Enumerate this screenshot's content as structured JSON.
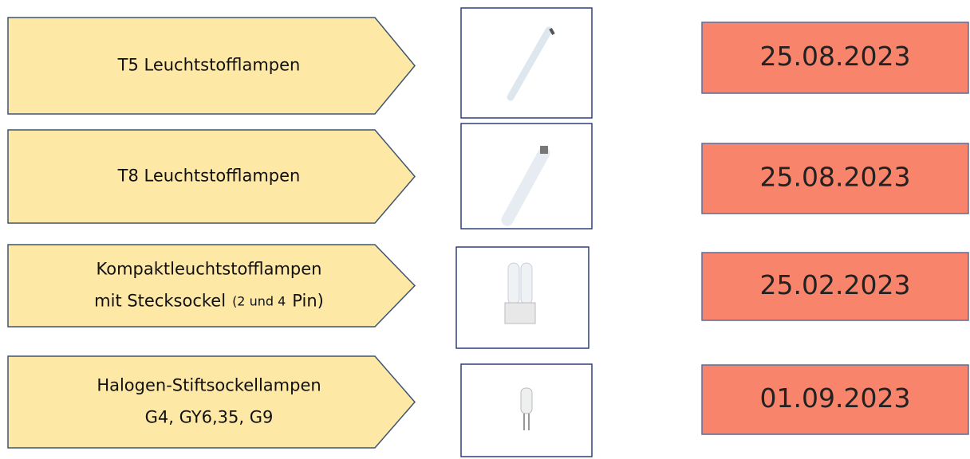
{
  "rows": [
    {
      "label": [
        [
          "T5 Leuchtstofflampen"
        ]
      ],
      "date": "25.08.2023"
    },
    {
      "label": [
        [
          "T8 Leuchtstofflampen"
        ]
      ],
      "date": "25.08.2023"
    },
    {
      "label": [
        [
          "Kompaktleuchtstofflampen"
        ],
        [
          "mit Stecksockel",
          "(2 und 4",
          "Pin)"
        ]
      ],
      "date": "25.02.2023"
    },
    {
      "label": [
        [
          "Halogen-Stiftsockellampen"
        ],
        [
          "G4, GY6,35, G9"
        ]
      ],
      "date": "01.09.2023"
    }
  ]
}
